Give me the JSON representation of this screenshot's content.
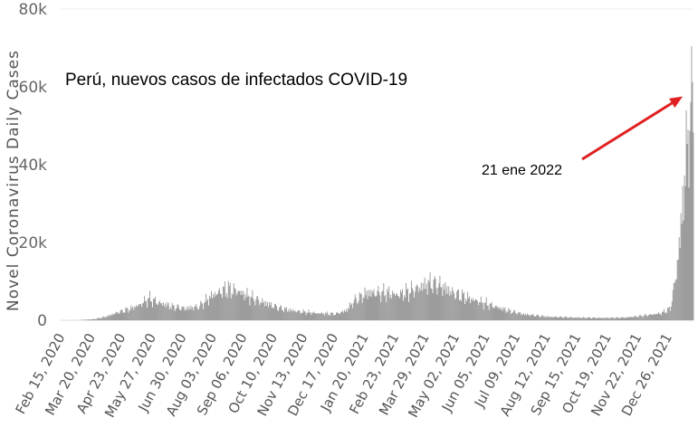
{
  "chart_data": {
    "type": "bar",
    "title": "Perú, nuevos casos de infectados COVID-19",
    "ylabel": "Novel Coronavirus Daily Cases",
    "xlabel": "",
    "ylim": [
      0,
      80000
    ],
    "grid": false,
    "bar_color": "#8c8c8c",
    "arrow_color": "#e02020",
    "yticks": [
      {
        "value": 0,
        "label": "0"
      },
      {
        "value": 20000,
        "label": "20k"
      },
      {
        "value": 40000,
        "label": "40k"
      },
      {
        "value": 60000,
        "label": "60k"
      },
      {
        "value": 80000,
        "label": "80k"
      }
    ],
    "x_start": "2020-02-15",
    "x_end": "2022-01-25",
    "xticks": [
      {
        "date": "2020-02-15",
        "label": "Feb 15, 2020"
      },
      {
        "date": "2020-03-20",
        "label": "Mar 20, 2020"
      },
      {
        "date": "2020-04-23",
        "label": "Apr 23, 2020"
      },
      {
        "date": "2020-05-27",
        "label": "May 27, 2020"
      },
      {
        "date": "2020-06-30",
        "label": "Jun 30, 2020"
      },
      {
        "date": "2020-08-03",
        "label": "Aug 03, 2020"
      },
      {
        "date": "2020-09-06",
        "label": "Sep 06, 2020"
      },
      {
        "date": "2020-10-10",
        "label": "Oct 10, 2020"
      },
      {
        "date": "2020-11-13",
        "label": "Nov 13, 2020"
      },
      {
        "date": "2020-12-17",
        "label": "Dec 17, 2020"
      },
      {
        "date": "2021-01-20",
        "label": "Jan 20, 2021"
      },
      {
        "date": "2021-02-23",
        "label": "Feb 23, 2021"
      },
      {
        "date": "2021-03-29",
        "label": "Mar 29, 2021"
      },
      {
        "date": "2021-05-02",
        "label": "May 02, 2021"
      },
      {
        "date": "2021-06-05",
        "label": "Jun 05, 2021"
      },
      {
        "date": "2021-07-09",
        "label": "Jul 09, 2021"
      },
      {
        "date": "2021-08-12",
        "label": "Aug 12, 2021"
      },
      {
        "date": "2021-09-15",
        "label": "Sep 15, 2021"
      },
      {
        "date": "2021-10-19",
        "label": "Oct 19, 2021"
      },
      {
        "date": "2021-11-22",
        "label": "Nov 22, 2021"
      },
      {
        "date": "2021-12-26",
        "label": "Dec 26, 2021"
      }
    ],
    "series": [
      {
        "values_daily_approx": [
          [
            "2020-03-06",
            0
          ],
          [
            "2020-03-25",
            300
          ],
          [
            "2020-04-08",
            1000
          ],
          [
            "2020-04-20",
            2000
          ],
          [
            "2020-05-05",
            3000
          ],
          [
            "2020-05-15",
            4000
          ],
          [
            "2020-05-25",
            5500
          ],
          [
            "2020-06-05",
            4500
          ],
          [
            "2020-06-20",
            3500
          ],
          [
            "2020-07-05",
            3000
          ],
          [
            "2020-07-20",
            3500
          ],
          [
            "2020-08-05",
            6500
          ],
          [
            "2020-08-20",
            8000
          ],
          [
            "2020-09-01",
            7500
          ],
          [
            "2020-09-15",
            6000
          ],
          [
            "2020-10-01",
            4500
          ],
          [
            "2020-10-20",
            3000
          ],
          [
            "2020-11-10",
            2200
          ],
          [
            "2020-12-01",
            1800
          ],
          [
            "2020-12-20",
            1600
          ],
          [
            "2021-01-01",
            2500
          ],
          [
            "2021-01-10",
            5000
          ],
          [
            "2021-01-25",
            7000
          ],
          [
            "2021-02-15",
            7000
          ],
          [
            "2021-03-01",
            6500
          ],
          [
            "2021-03-20",
            8000
          ],
          [
            "2021-04-05",
            9500
          ],
          [
            "2021-04-15",
            9000
          ],
          [
            "2021-05-01",
            7000
          ],
          [
            "2021-05-20",
            5500
          ],
          [
            "2021-06-10",
            4000
          ],
          [
            "2021-07-01",
            2500
          ],
          [
            "2021-07-20",
            1500
          ],
          [
            "2021-08-15",
            900
          ],
          [
            "2021-09-15",
            700
          ],
          [
            "2021-10-15",
            600
          ],
          [
            "2021-11-10",
            700
          ],
          [
            "2021-12-01",
            1200
          ],
          [
            "2021-12-20",
            1800
          ],
          [
            "2021-12-30",
            3000
          ],
          [
            "2022-01-03",
            8000
          ],
          [
            "2022-01-08",
            16000
          ],
          [
            "2022-01-13",
            30000
          ],
          [
            "2022-01-17",
            42000
          ],
          [
            "2022-01-21",
            52000
          ],
          [
            "2022-01-25",
            57000
          ]
        ]
      }
    ],
    "annotations": [
      {
        "text": "21 ene 2022",
        "arrow_to_date": "2022-01-21",
        "arrow_to_value": 58000
      }
    ]
  }
}
